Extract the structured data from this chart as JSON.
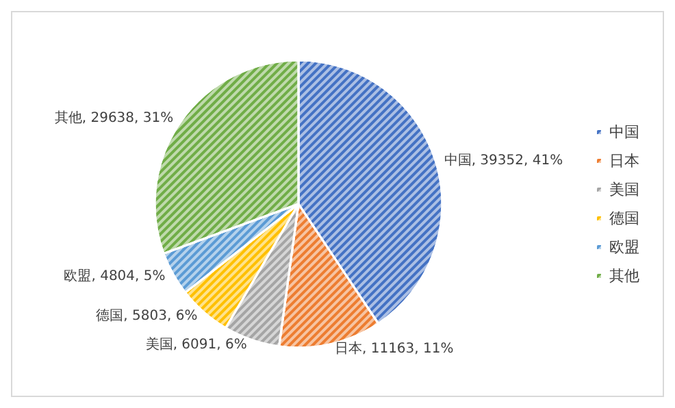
{
  "chart_data": {
    "type": "pie",
    "categories": [
      "中国",
      "日本",
      "美国",
      "德国",
      "欧盟",
      "其他"
    ],
    "values": [
      39352,
      11163,
      6091,
      5803,
      4804,
      29638
    ],
    "colors": [
      "#4472c4",
      "#ed7d31",
      "#a5a5a5",
      "#ffc000",
      "#5b9bd5",
      "#70ad47"
    ],
    "value_labels": [
      "中国, 39352, 41%",
      "日本, 11163, 11%",
      "美国, 6091, 6%",
      "德国, 5803, 6%",
      "欧盟, 4804, 5%",
      "其他, 29638, 31%"
    ],
    "legend": "right"
  }
}
